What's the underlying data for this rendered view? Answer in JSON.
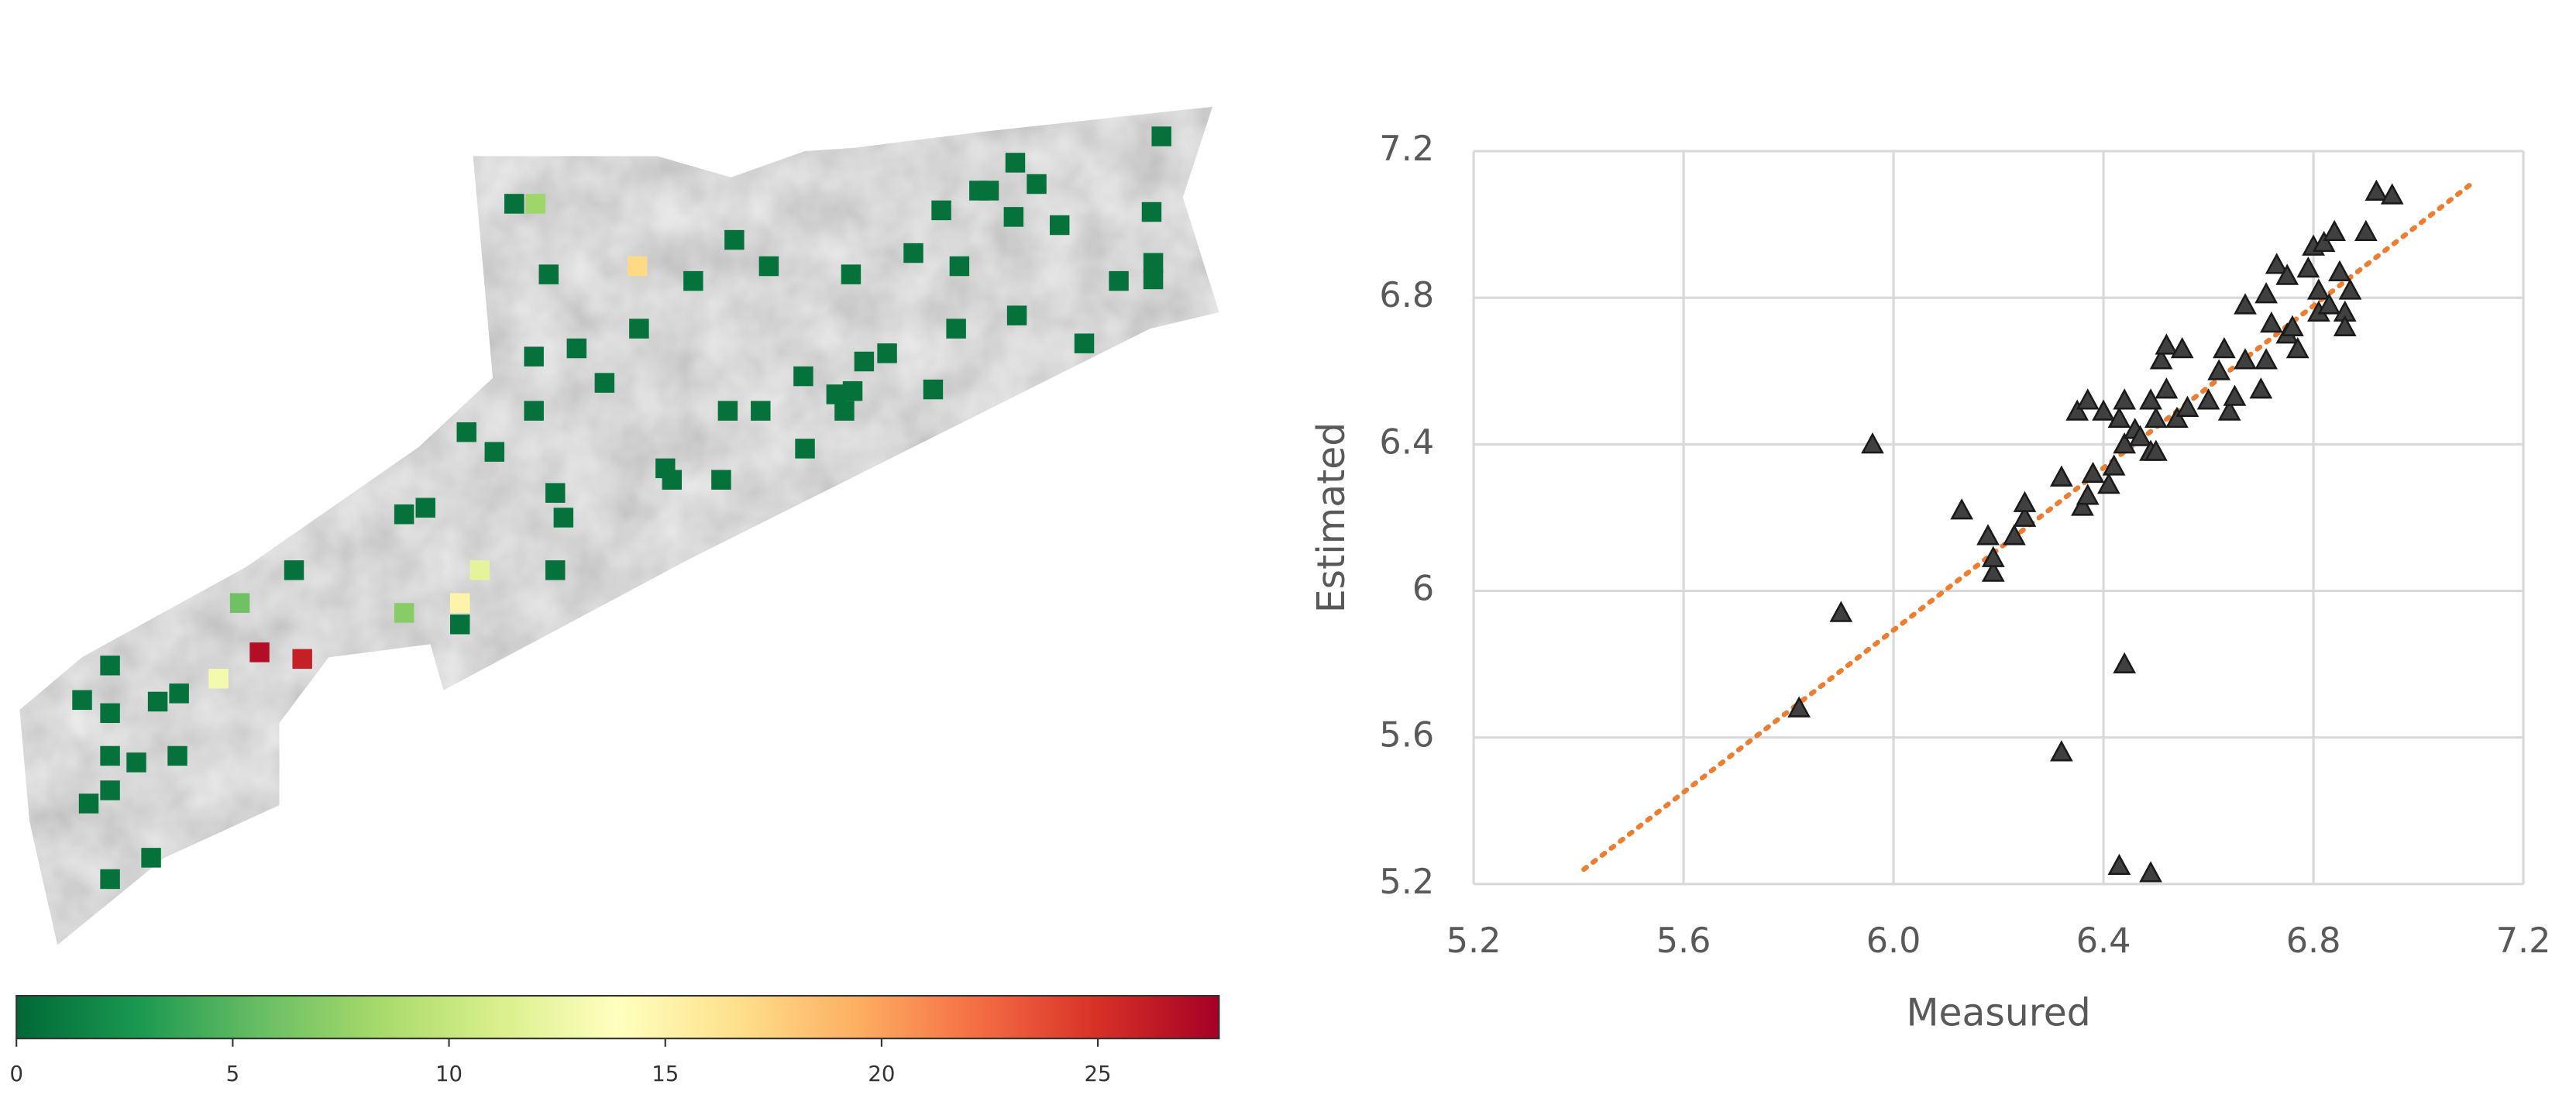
{
  "chart_data": [
    {
      "type": "map",
      "values": [
        0.5,
        8,
        0.5,
        17,
        0.5,
        0.5,
        0.5,
        0.5,
        0.5,
        0.5,
        0.5,
        0.5,
        0.5,
        0.5,
        0.5,
        0.5,
        0.5,
        0.5,
        0.5,
        0.5,
        0.5,
        0.5,
        0.5,
        0.5,
        0.5,
        0.5,
        0.5,
        0.5,
        0.5,
        0.5,
        0.5,
        0.5,
        0.5,
        0.5,
        0.5,
        0.5,
        0.5,
        0.5,
        0.5,
        0.5,
        0.5,
        0.5,
        0.5,
        0.5,
        0.5,
        0.5,
        0.5,
        0.5,
        12,
        0.5,
        0.5,
        15,
        0.5,
        7,
        6,
        27,
        26,
        13,
        0.5,
        0.5,
        0.5,
        0.5,
        0.5,
        0.5,
        0.5,
        0.5,
        0.5,
        0.5,
        0.5,
        0.5,
        0.5
      ],
      "colormap": [
        "#006837",
        "#1a9850",
        "#66bd63",
        "#a6d96a",
        "#d9ef8b",
        "#ffffbf",
        "#fee08b",
        "#fdae61",
        "#f46d43",
        "#d73027",
        "#a50026"
      ],
      "xlim": [
        0,
        27.8
      ],
      "xticks": [
        0,
        5,
        10,
        15,
        20,
        25
      ]
    },
    {
      "type": "scatter",
      "xlabel": "Measured",
      "ylabel": "Estimated",
      "color": "#404040",
      "x": [
        5.82,
        5.9,
        5.96,
        6.13,
        6.18,
        6.19,
        6.19,
        6.23,
        6.25,
        6.25,
        6.32,
        6.32,
        6.35,
        6.36,
        6.37,
        6.37,
        6.38,
        6.4,
        6.41,
        6.42,
        6.43,
        6.43,
        6.44,
        6.44,
        6.44,
        6.46,
        6.47,
        6.49,
        6.49,
        6.49,
        6.5,
        6.5,
        6.51,
        6.52,
        6.52,
        6.54,
        6.55,
        6.56,
        6.6,
        6.62,
        6.63,
        6.64,
        6.65,
        6.67,
        6.67,
        6.7,
        6.71,
        6.71,
        6.72,
        6.73,
        6.75,
        6.75,
        6.76,
        6.77,
        6.79,
        6.8,
        6.81,
        6.81,
        6.82,
        6.84,
        6.83,
        6.85,
        6.86,
        6.86,
        6.87,
        6.9,
        6.92,
        6.95
      ],
      "y": [
        5.68,
        5.94,
        6.4,
        6.22,
        6.15,
        6.05,
        6.09,
        6.15,
        6.2,
        6.24,
        5.56,
        6.31,
        6.49,
        6.23,
        6.52,
        6.26,
        6.32,
        6.49,
        6.29,
        6.34,
        6.47,
        5.25,
        5.8,
        6.52,
        6.4,
        6.44,
        6.42,
        6.52,
        5.23,
        6.38,
        6.38,
        6.47,
        6.63,
        6.55,
        6.67,
        6.47,
        6.66,
        6.5,
        6.52,
        6.6,
        6.66,
        6.49,
        6.53,
        6.78,
        6.63,
        6.55,
        6.63,
        6.81,
        6.73,
        6.89,
        6.86,
        6.7,
        6.72,
        6.66,
        6.88,
        6.94,
        6.82,
        6.76,
        6.95,
        6.98,
        6.78,
        6.87,
        6.76,
        6.72,
        6.82,
        6.98,
        7.09,
        7.08
      ],
      "trendline": {
        "x": [
          5.41,
          7.1
        ],
        "y": [
          5.24,
          7.11
        ],
        "color": "#ed7d31"
      },
      "xlim": [
        5.2,
        7.2
      ],
      "ylim": [
        5.2,
        7.2
      ],
      "xticks": [
        5.2,
        5.6,
        {
          "value": 6,
          "label": "6.0"
        },
        6.4,
        6.8,
        7.2
      ],
      "yticks": [
        5.2,
        5.6,
        6,
        6.4,
        6.8,
        7.2
      ],
      "grid": true
    }
  ]
}
